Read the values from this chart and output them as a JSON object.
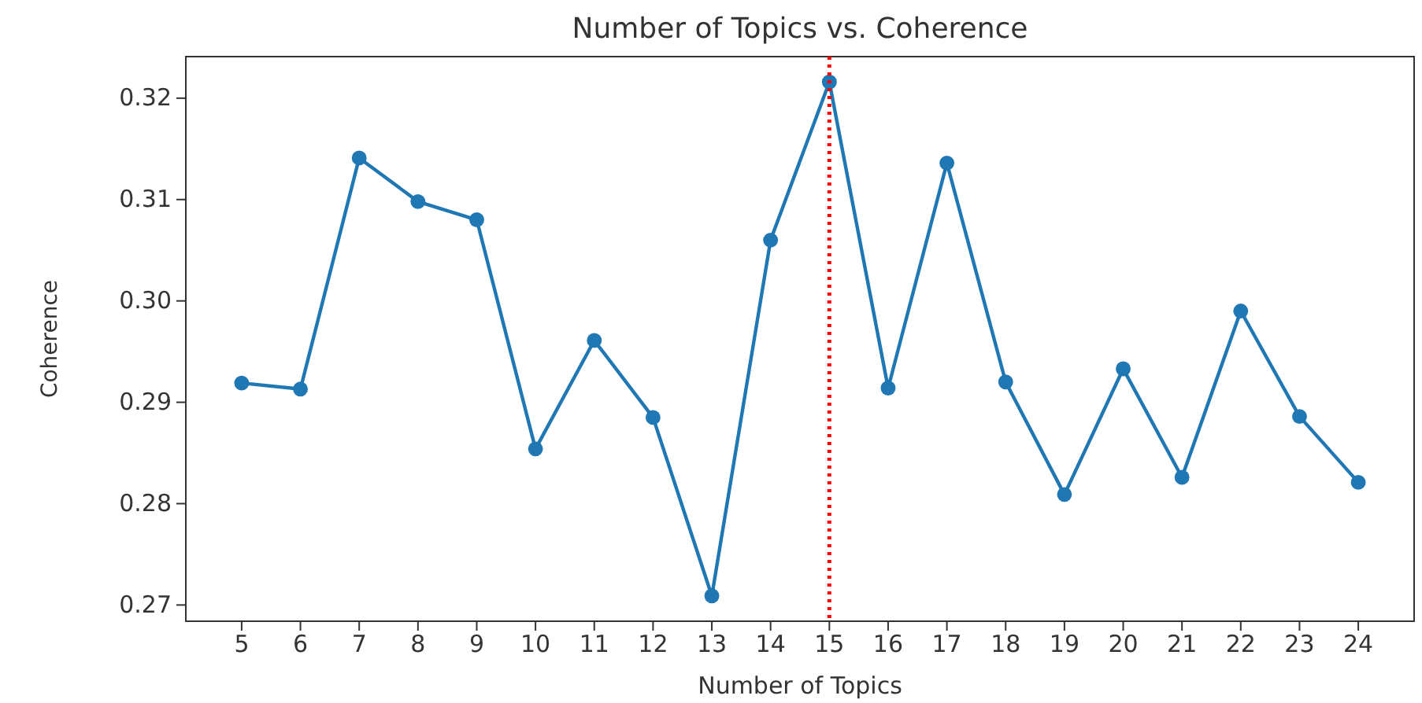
{
  "chart_data": {
    "type": "line",
    "title": "Number of Topics vs. Coherence",
    "xlabel": "Number of Topics",
    "ylabel": "Coherence",
    "x": [
      5,
      6,
      7,
      8,
      9,
      10,
      11,
      12,
      13,
      14,
      15,
      16,
      17,
      18,
      19,
      20,
      21,
      22,
      23,
      24
    ],
    "series": [
      {
        "color": "#1f77b4",
        "values": [
          0.2919,
          0.2913,
          0.3141,
          0.3098,
          0.308,
          0.2854,
          0.2961,
          0.2885,
          0.2709,
          0.306,
          0.3216,
          0.2914,
          0.3136,
          0.292,
          0.2809,
          0.2933,
          0.2826,
          0.299,
          0.2886,
          0.2821
        ]
      }
    ],
    "xlim": [
      4.05,
      24.95
    ],
    "ylim": [
      0.2684,
      0.3241
    ],
    "xticks": [
      5,
      6,
      7,
      8,
      9,
      10,
      11,
      12,
      13,
      14,
      15,
      16,
      17,
      18,
      19,
      20,
      21,
      22,
      23,
      24
    ],
    "yticks": [
      0.27,
      0.28,
      0.29,
      {
        "value": 0.3,
        "label": "0.30"
      },
      0.31,
      0.32
    ],
    "ref_lines": [
      {
        "axis": "x",
        "value": 15,
        "color": "#ff0000",
        "line_style": "dotted"
      }
    ],
    "marker": "circle",
    "grid": false
  }
}
